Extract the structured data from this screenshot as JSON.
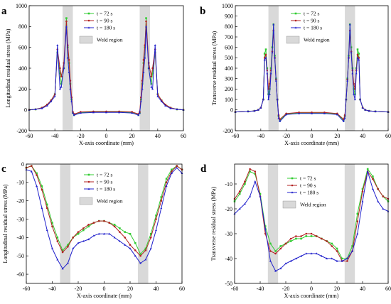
{
  "chart_data": [
    {
      "panel": "a",
      "type": "line",
      "xlabel": "X-axis coordinate (mm)",
      "ylabel": "Longitudinal residual stress (MPa)",
      "xlim": [
        -60,
        60
      ],
      "ylim": [
        -200,
        1000
      ],
      "xticks": [
        -60,
        -40,
        -20,
        0,
        20,
        40,
        60
      ],
      "yticks": [
        -200,
        0,
        200,
        400,
        600,
        800,
        1000
      ],
      "weld_regions": [
        [
          -34,
          -26
        ],
        [
          26,
          34
        ]
      ],
      "legend_placement": "top-center",
      "weld_legend_label": "Weld region",
      "series": [
        {
          "name": "t = 72 s",
          "color": "#33cc33",
          "x": [
            -60,
            -55,
            -50,
            -46,
            -43,
            -40,
            -38,
            -36,
            -35,
            -33,
            -31,
            -30,
            -29,
            -28,
            -27,
            -26,
            -25,
            -20,
            -10,
            0,
            10,
            20,
            25,
            26,
            27,
            28,
            29,
            30,
            31,
            33,
            35,
            36,
            38,
            40,
            43,
            46,
            50,
            55,
            60
          ],
          "y": [
            0,
            5,
            20,
            50,
            90,
            150,
            550,
            350,
            250,
            400,
            880,
            600,
            450,
            250,
            100,
            -30,
            -50,
            -25,
            -20,
            -20,
            -20,
            -25,
            -50,
            -30,
            100,
            250,
            450,
            600,
            880,
            400,
            250,
            350,
            550,
            150,
            90,
            50,
            20,
            5,
            0
          ]
        },
        {
          "name": "t = 90 s",
          "color": "#b22222",
          "x": [
            -60,
            -55,
            -50,
            -46,
            -43,
            -40,
            -38,
            -36,
            -35,
            -33,
            -31,
            -30,
            -29,
            -28,
            -27,
            -26,
            -25,
            -20,
            -10,
            0,
            10,
            20,
            25,
            26,
            27,
            28,
            29,
            30,
            31,
            33,
            35,
            36,
            38,
            40,
            43,
            46,
            50,
            55,
            60
          ],
          "y": [
            0,
            5,
            20,
            50,
            90,
            150,
            580,
            400,
            320,
            450,
            850,
            620,
            480,
            280,
            120,
            -20,
            -40,
            -20,
            -15,
            -15,
            -15,
            -20,
            -40,
            -20,
            120,
            280,
            480,
            620,
            850,
            450,
            320,
            400,
            580,
            150,
            90,
            50,
            20,
            5,
            0
          ]
        },
        {
          "name": "t = 180 s",
          "color": "#2222cc",
          "x": [
            -60,
            -55,
            -50,
            -46,
            -43,
            -40,
            -38,
            -36,
            -35,
            -33,
            -31,
            -30,
            -29,
            -28,
            -27,
            -26,
            -25,
            -20,
            -10,
            0,
            10,
            20,
            25,
            26,
            27,
            28,
            29,
            30,
            31,
            33,
            35,
            36,
            38,
            40,
            43,
            46,
            50,
            55,
            60
          ],
          "y": [
            0,
            5,
            15,
            40,
            80,
            130,
            620,
            200,
            220,
            400,
            800,
            500,
            360,
            200,
            80,
            -30,
            -50,
            -30,
            -25,
            -25,
            -25,
            -30,
            -50,
            -30,
            80,
            200,
            360,
            500,
            800,
            400,
            220,
            200,
            620,
            130,
            80,
            40,
            15,
            5,
            0
          ]
        }
      ]
    },
    {
      "panel": "b",
      "type": "line",
      "xlabel": "X-axis coordinate (mm)",
      "ylabel": "Transverse residual stress (MPa)",
      "xlim": [
        -60,
        60
      ],
      "ylim": [
        -200,
        1000
      ],
      "xticks": [
        -60,
        -40,
        -20,
        0,
        20,
        40,
        60
      ],
      "yticks": [
        -200,
        0,
        100,
        200,
        300,
        400,
        500,
        600,
        700,
        800,
        900,
        1000
      ],
      "weld_regions": [
        [
          -34,
          -26
        ],
        [
          26,
          34
        ]
      ],
      "legend_placement": "top-center",
      "weld_legend_label": "Weld region",
      "series": [
        {
          "name": "t = 72 s",
          "color": "#33cc33",
          "x": [
            -60,
            -50,
            -45,
            -42,
            -40,
            -38,
            -37,
            -36,
            -35,
            -34,
            -33,
            -32,
            -31,
            -30,
            -29,
            -28,
            -27,
            -26,
            -25,
            -20,
            -10,
            0,
            10,
            20,
            25,
            26,
            27,
            28,
            29,
            30,
            31,
            32,
            33,
            34,
            35,
            36,
            37,
            38,
            40,
            42,
            45,
            50,
            60
          ],
          "y": [
            -20,
            -15,
            -10,
            0,
            20,
            100,
            540,
            580,
            400,
            150,
            200,
            400,
            600,
            820,
            520,
            300,
            100,
            -60,
            -100,
            -40,
            -30,
            -30,
            -30,
            -40,
            -100,
            -60,
            100,
            300,
            520,
            820,
            600,
            400,
            200,
            150,
            400,
            580,
            540,
            100,
            20,
            0,
            -10,
            -15,
            -20
          ]
        },
        {
          "name": "t = 90 s",
          "color": "#b22222",
          "x": [
            -60,
            -50,
            -45,
            -42,
            -40,
            -38,
            -37,
            -36,
            -35,
            -34,
            -33,
            -32,
            -31,
            -30,
            -29,
            -28,
            -27,
            -26,
            -25,
            -20,
            -10,
            0,
            10,
            20,
            25,
            26,
            27,
            28,
            29,
            30,
            31,
            32,
            33,
            34,
            35,
            36,
            37,
            38,
            40,
            42,
            45,
            50,
            60
          ],
          "y": [
            -20,
            -15,
            -10,
            0,
            20,
            100,
            500,
            530,
            380,
            200,
            250,
            380,
            560,
            760,
            500,
            290,
            100,
            -50,
            -90,
            -35,
            -25,
            -25,
            -25,
            -35,
            -90,
            -50,
            100,
            290,
            500,
            760,
            560,
            380,
            250,
            200,
            380,
            530,
            500,
            100,
            20,
            0,
            -10,
            -15,
            -20
          ]
        },
        {
          "name": "t = 180 s",
          "color": "#2222cc",
          "x": [
            -60,
            -50,
            -45,
            -42,
            -40,
            -38,
            -37,
            -36,
            -35,
            -34,
            -33,
            -32,
            -31,
            -30,
            -29,
            -28,
            -27,
            -26,
            -25,
            -20,
            -10,
            0,
            10,
            20,
            25,
            26,
            27,
            28,
            29,
            30,
            31,
            32,
            33,
            34,
            35,
            36,
            37,
            38,
            40,
            42,
            45,
            50,
            60
          ],
          "y": [
            -20,
            -15,
            -10,
            0,
            20,
            100,
            480,
            500,
            350,
            100,
            150,
            350,
            550,
            820,
            500,
            280,
            100,
            -80,
            -110,
            -45,
            -35,
            -35,
            -35,
            -45,
            -110,
            -80,
            100,
            280,
            500,
            820,
            550,
            350,
            150,
            100,
            350,
            500,
            480,
            100,
            20,
            0,
            -10,
            -15,
            -20
          ]
        }
      ]
    },
    {
      "panel": "c",
      "type": "line",
      "xlabel": "X-axis coordinate (mm)",
      "ylabel": "Longitudinal residual stress (MPa)",
      "xlim": [
        -60,
        60
      ],
      "ylim": [
        -65,
        0
      ],
      "xticks": [
        -60,
        -40,
        -20,
        0,
        20,
        40,
        60
      ],
      "yticks": [
        -60,
        -50,
        -40,
        -30,
        -20,
        -10,
        0
      ],
      "weld_regions": [
        [
          -34,
          -26
        ],
        [
          26,
          34
        ]
      ],
      "legend_placement": "top-center",
      "weld_legend_label": "Weld region",
      "series": [
        {
          "name": "t = 72 s",
          "color": "#33cc33",
          "x": [
            -60,
            -56,
            -52,
            -48,
            -44,
            -40,
            -36,
            -32,
            -28,
            -24,
            -20,
            -16,
            -12,
            -8,
            -4,
            0,
            4,
            8,
            12,
            16,
            20,
            24,
            28,
            32,
            36,
            40,
            44,
            48,
            52,
            56,
            60
          ],
          "y": [
            -2,
            -1,
            -5,
            -12,
            -22,
            -32,
            -40,
            -47,
            -44,
            -40,
            -38,
            -36,
            -34,
            -32,
            -31,
            -31,
            -32,
            -33,
            -35,
            -37,
            -38,
            -43,
            -49,
            -46,
            -38,
            -28,
            -18,
            -8,
            -3,
            -1,
            -3
          ]
        },
        {
          "name": "t = 90 s",
          "color": "#b22222",
          "x": [
            -60,
            -56,
            -52,
            -48,
            -44,
            -40,
            -36,
            -32,
            -28,
            -24,
            -20,
            -16,
            -12,
            -8,
            -4,
            0,
            4,
            8,
            12,
            16,
            20,
            24,
            28,
            32,
            36,
            40,
            44,
            48,
            52,
            56,
            60
          ],
          "y": [
            -2,
            -1,
            -6,
            -14,
            -24,
            -34,
            -42,
            -48,
            -45,
            -40,
            -37,
            -35,
            -33,
            -32,
            -31,
            -31,
            -32,
            -34,
            -37,
            -40,
            -44,
            -47,
            -50,
            -47,
            -40,
            -30,
            -20,
            -10,
            -4,
            -1,
            -3
          ]
        },
        {
          "name": "t = 180 s",
          "color": "#2222cc",
          "x": [
            -60,
            -56,
            -52,
            -48,
            -44,
            -40,
            -36,
            -32,
            -28,
            -24,
            -20,
            -16,
            -12,
            -8,
            -4,
            0,
            4,
            8,
            12,
            16,
            20,
            24,
            28,
            32,
            36,
            40,
            44,
            48,
            52,
            56,
            60
          ],
          "y": [
            -3,
            -4,
            -12,
            -24,
            -36,
            -46,
            -52,
            -57,
            -54,
            -46,
            -43,
            -42,
            -41,
            -39,
            -38,
            -38,
            -38,
            -40,
            -42,
            -44,
            -46,
            -50,
            -54,
            -52,
            -46,
            -36,
            -24,
            -12,
            -5,
            -2,
            -5
          ]
        }
      ]
    },
    {
      "panel": "d",
      "type": "line",
      "xlabel": "X-axis coordinate (mm)",
      "ylabel": "Transverse residual stress (MPa)",
      "xlim": [
        -60,
        60
      ],
      "ylim": [
        -50,
        -2
      ],
      "xticks": [
        -60,
        -40,
        -20,
        0,
        20,
        40,
        60
      ],
      "yticks": [
        -50,
        -40,
        -30,
        -20,
        -10
      ],
      "weld_regions": [
        [
          -34,
          -26
        ],
        [
          26,
          34
        ]
      ],
      "legend_placement": "top-center",
      "weld_legend_label": "Weld region",
      "series": [
        {
          "name": "t = 72 s",
          "color": "#33cc33",
          "x": [
            -60,
            -56,
            -52,
            -48,
            -44,
            -40,
            -36,
            -32,
            -28,
            -24,
            -20,
            -16,
            -12,
            -8,
            -4,
            0,
            4,
            8,
            12,
            16,
            20,
            24,
            28,
            32,
            36,
            40,
            44,
            48,
            52,
            56,
            60
          ],
          "y": [
            -17,
            -14,
            -10,
            -5,
            -6,
            -14,
            -27,
            -34,
            -37,
            -35,
            -34,
            -33,
            -32,
            -32,
            -31,
            -31,
            -31,
            -32,
            -33,
            -34,
            -36,
            -40,
            -40,
            -35,
            -22,
            -12,
            -4,
            -7,
            -12,
            -15,
            -17
          ]
        },
        {
          "name": "t = 90 s",
          "color": "#b22222",
          "x": [
            -60,
            -56,
            -52,
            -48,
            -44,
            -40,
            -36,
            -32,
            -28,
            -24,
            -20,
            -16,
            -12,
            -8,
            -4,
            0,
            4,
            8,
            12,
            16,
            20,
            24,
            28,
            32,
            36,
            40,
            44,
            48,
            52,
            56,
            60
          ],
          "y": [
            -16,
            -13,
            -9,
            -4,
            -5,
            -15,
            -30,
            -37,
            -38,
            -36,
            -34,
            -32,
            -31,
            -31,
            -30,
            -30,
            -31,
            -32,
            -33,
            -35,
            -37,
            -41,
            -41,
            -37,
            -25,
            -13,
            -5,
            -8,
            -12,
            -15,
            -16
          ]
        },
        {
          "name": "t = 180 s",
          "color": "#2222cc",
          "x": [
            -60,
            -56,
            -52,
            -48,
            -44,
            -40,
            -36,
            -32,
            -28,
            -24,
            -20,
            -16,
            -12,
            -8,
            -4,
            0,
            4,
            8,
            12,
            16,
            20,
            24,
            28,
            32,
            36,
            40,
            44,
            48,
            52,
            56,
            60
          ],
          "y": [
            -22,
            -20,
            -18,
            -15,
            -9,
            -15,
            -28,
            -41,
            -45,
            -44,
            -42,
            -41,
            -40,
            -39,
            -38,
            -38,
            -38,
            -39,
            -40,
            -40,
            -41,
            -41,
            -40,
            -37,
            -30,
            -17,
            -5,
            -12,
            -17,
            -20,
            -21
          ]
        }
      ]
    }
  ]
}
